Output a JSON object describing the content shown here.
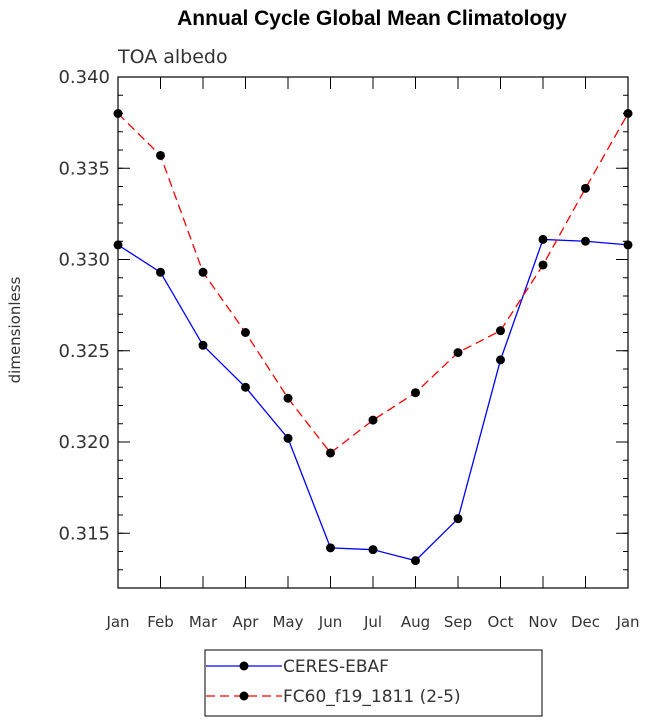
{
  "chart_data": {
    "type": "line",
    "title": "Annual Cycle Global Mean Climatology",
    "subtitle": "TOA albedo",
    "xlabel": "",
    "ylabel": "dimensionless",
    "categories": [
      "Jan",
      "Feb",
      "Mar",
      "Apr",
      "May",
      "Jun",
      "Jul",
      "Aug",
      "Sep",
      "Oct",
      "Nov",
      "Dec",
      "Jan"
    ],
    "ylim": [
      0.312,
      0.34
    ],
    "yticks": [
      "0.315",
      "0.320",
      "0.325",
      "0.330",
      "0.335",
      "0.340"
    ],
    "legend_position": "bottom-center",
    "series": [
      {
        "name": "CERES-EBAF",
        "color": "#0000ff",
        "dash": "solid",
        "values": [
          0.3308,
          0.3293,
          0.3253,
          0.323,
          0.3202,
          0.3142,
          0.3141,
          0.3135,
          0.3158,
          0.3245,
          0.3311,
          0.331,
          0.3308
        ]
      },
      {
        "name": "FC60_f19_1811 (2-5)",
        "color": "#ff0000",
        "dash": "dashed",
        "values": [
          0.338,
          0.3357,
          0.3293,
          0.326,
          0.3224,
          0.3194,
          0.3212,
          0.3227,
          0.3249,
          0.3261,
          0.3297,
          0.3339,
          0.338
        ]
      }
    ]
  }
}
